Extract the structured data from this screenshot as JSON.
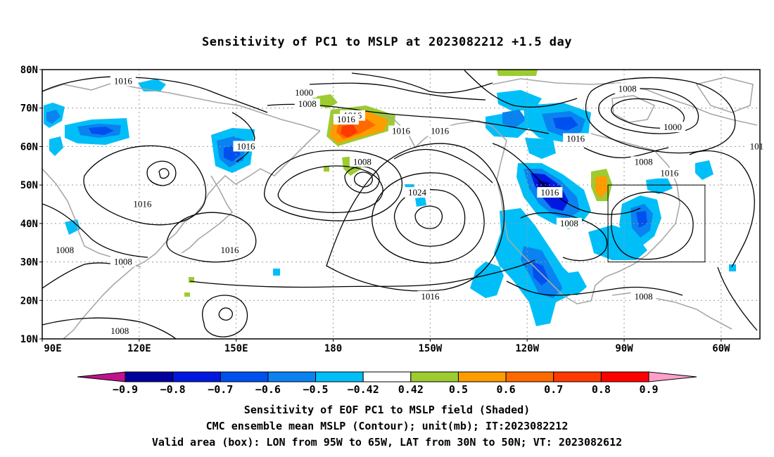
{
  "title": "Sensitivity of PC1 to MSLP at 2023082212 +1.5 day",
  "map": {
    "lat_labels": [
      "80N",
      "70N",
      "60N",
      "50N",
      "40N",
      "30N",
      "20N",
      "10N"
    ],
    "lon_labels": [
      "90E",
      "120E",
      "150E",
      "180",
      "150W",
      "120W",
      "90W",
      "60W"
    ],
    "lon_range": [
      90,
      312
    ],
    "lat_range": [
      10,
      80
    ],
    "contour_labels": [
      {
        "text": "1016",
        "lon": 115,
        "lat": 77
      },
      {
        "text": "1000",
        "lon": 171,
        "lat": 74
      },
      {
        "text": "1008",
        "lon": 172,
        "lat": 71
      },
      {
        "text": "1016",
        "lon": 186,
        "lat": 68
      },
      {
        "text": "1016",
        "lon": 184,
        "lat": 67
      },
      {
        "text": "1016",
        "lon": 201,
        "lat": 64
      },
      {
        "text": "1016",
        "lon": 213,
        "lat": 64
      },
      {
        "text": "1008",
        "lon": 271,
        "lat": 75
      },
      {
        "text": "1000",
        "lon": 285,
        "lat": 65
      },
      {
        "text": "1016",
        "lon": 255,
        "lat": 62
      },
      {
        "text": "1016",
        "lon": 153,
        "lat": 60
      },
      {
        "text": "101",
        "lon": 311,
        "lat": 60
      },
      {
        "text": "1008",
        "lon": 189,
        "lat": 56
      },
      {
        "text": "1008",
        "lon": 276,
        "lat": 56
      },
      {
        "text": "1016",
        "lon": 284,
        "lat": 53
      },
      {
        "text": "1024",
        "lon": 206,
        "lat": 48
      },
      {
        "text": "1016",
        "lon": 247,
        "lat": 48
      },
      {
        "text": "1016",
        "lon": 121,
        "lat": 45
      },
      {
        "text": "1008",
        "lon": 253,
        "lat": 40
      },
      {
        "text": "1016",
        "lon": 148,
        "lat": 33
      },
      {
        "text": "1008",
        "lon": 97,
        "lat": 33
      },
      {
        "text": "1008",
        "lon": 115,
        "lat": 30
      },
      {
        "text": "1016",
        "lon": 210,
        "lat": 21
      },
      {
        "text": "1008",
        "lon": 276,
        "lat": 21
      },
      {
        "text": "1008",
        "lon": 114,
        "lat": 12
      }
    ],
    "valid_box": {
      "lon": [
        265,
        295
      ],
      "lat": [
        30,
        50
      ]
    }
  },
  "colorbar": {
    "labels": [
      "−0.9",
      "−0.8",
      "−0.7",
      "−0.6",
      "−0.5",
      "−0.42",
      "0.42",
      "0.5",
      "0.6",
      "0.7",
      "0.8",
      "0.9"
    ],
    "colors": {
      "below": "#c0128c",
      "bins": [
        "#00009c",
        "#0018e0",
        "#0050f0",
        "#0a82f0",
        "#00bff8",
        "#ffffff",
        "#9ccc30",
        "#ff9c00",
        "#ff6a00",
        "#ff3a00",
        "#ff0000"
      ],
      "above": "#ffa0c8"
    }
  },
  "footer": {
    "line1": "Sensitivity of EOF PC1 to MSLP field (Shaded)",
    "line2": "CMC ensemble mean MSLP (Contour); unit(mb); IT:2023082212",
    "line3": "Valid area (box): LON from 95W to 65W, LAT from 30N to 50N; VT: 2023082612"
  }
}
